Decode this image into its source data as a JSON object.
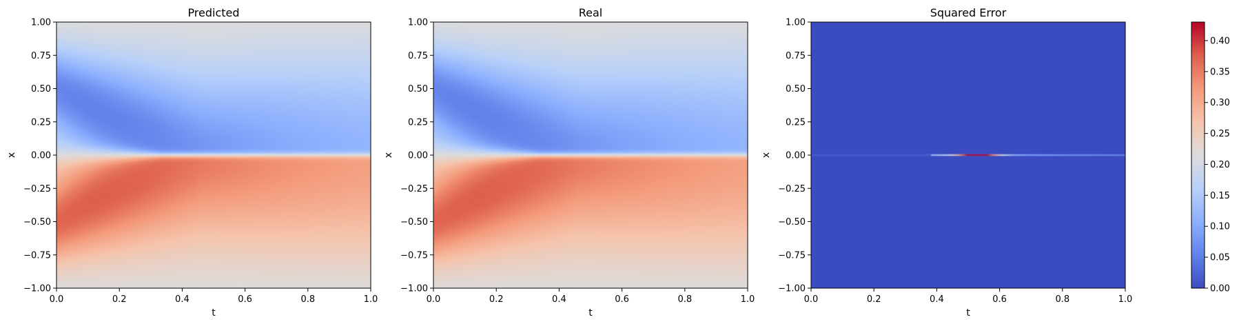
{
  "chart_data": [
    {
      "type": "heatmap",
      "title": "Predicted",
      "xlabel": "t",
      "ylabel": "x",
      "xlim": [
        0,
        1
      ],
      "ylim": [
        -1,
        1
      ],
      "xticks": [
        "0.0",
        "0.2",
        "0.4",
        "0.6",
        "0.8",
        "1.0"
      ],
      "yticks": [
        "1.00",
        "0.75",
        "0.50",
        "0.25",
        "0.00",
        "−0.25",
        "−0.50",
        "−0.75",
        "−1.00"
      ],
      "colormap": "coolwarm",
      "field": "burgers_solution"
    },
    {
      "type": "heatmap",
      "title": "Real",
      "xlabel": "t",
      "ylabel": "x",
      "xlim": [
        0,
        1
      ],
      "ylim": [
        -1,
        1
      ],
      "xticks": [
        "0.0",
        "0.2",
        "0.4",
        "0.6",
        "0.8",
        "1.0"
      ],
      "yticks": [
        "1.00",
        "0.75",
        "0.50",
        "0.25",
        "0.00",
        "−0.25",
        "−0.50",
        "−0.75",
        "−1.00"
      ],
      "colormap": "coolwarm",
      "field": "burgers_solution"
    },
    {
      "type": "heatmap",
      "title": "Squared Error",
      "xlabel": "t",
      "ylabel": "x",
      "xlim": [
        0,
        1
      ],
      "ylim": [
        -1,
        1
      ],
      "xticks": [
        "0.0",
        "0.2",
        "0.4",
        "0.6",
        "0.8",
        "1.0"
      ],
      "yticks": [
        "1.00",
        "0.75",
        "0.50",
        "0.25",
        "0.00",
        "−0.25",
        "−0.50",
        "−0.75",
        "−1.00"
      ],
      "colormap": "coolwarm",
      "field": "squared_error"
    }
  ],
  "colorbar": {
    "ticks": [
      "0.00",
      "0.05",
      "0.10",
      "0.15",
      "0.20",
      "0.25",
      "0.30",
      "0.35",
      "0.40"
    ],
    "vmin": 0,
    "vmax": 0.43,
    "colors": [
      "#3b4cc0",
      "#6282ea",
      "#8db0fe",
      "#b8d0f9",
      "#dddcdc",
      "#f5c4ac",
      "#f49a7b",
      "#de604d",
      "#b40426"
    ]
  }
}
